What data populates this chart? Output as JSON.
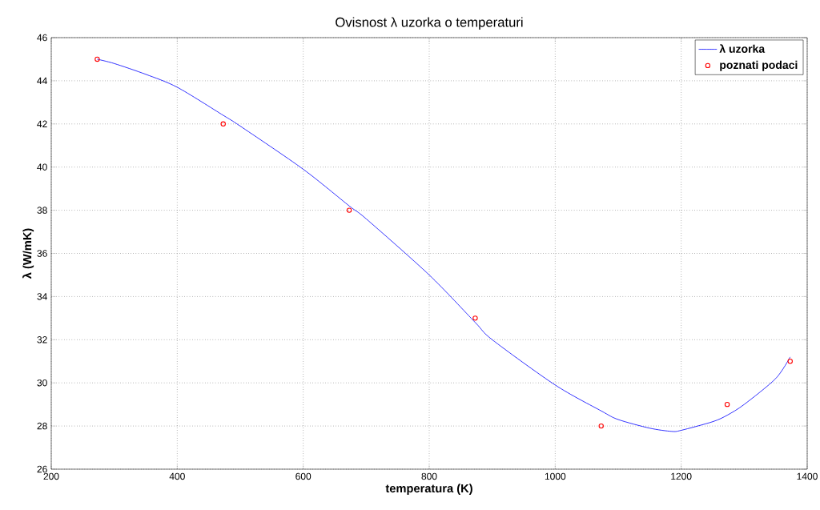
{
  "chart_data": {
    "type": "line",
    "title": "Ovisnost λ uzorka o temperaturi",
    "xlabel": "temperatura (K)",
    "ylabel": "λ (W/mK)",
    "xlim": [
      200,
      1400
    ],
    "ylim": [
      26,
      46
    ],
    "xticks": [
      200,
      400,
      600,
      800,
      1000,
      1200,
      1400
    ],
    "yticks": [
      26,
      28,
      30,
      32,
      34,
      36,
      38,
      40,
      42,
      44,
      46
    ],
    "grid": true,
    "legend": "top right",
    "series": [
      {
        "name": "λ uzorka",
        "color": "#0000ff",
        "marker": "none",
        "x": [
          273,
          300,
          350,
          400,
          473,
          500,
          600,
          673,
          700,
          800,
          873,
          900,
          1000,
          1073,
          1100,
          1150,
          1185,
          1200,
          1250,
          1273,
          1300,
          1350,
          1373
        ],
        "values": [
          45.0,
          44.8,
          44.3,
          43.7,
          42.4,
          41.9,
          39.9,
          38.2,
          37.6,
          35.0,
          32.8,
          32.0,
          29.9,
          28.7,
          28.3,
          27.9,
          27.75,
          27.8,
          28.2,
          28.5,
          29.0,
          30.2,
          31.2
        ]
      },
      {
        "name": "poznati podaci",
        "type": "scatter",
        "color": "#ff0000",
        "marker": "circle",
        "x": [
          273,
          473,
          673,
          873,
          1073,
          1273,
          1373
        ],
        "values": [
          45,
          42,
          38,
          33,
          28,
          29,
          31
        ]
      }
    ]
  }
}
